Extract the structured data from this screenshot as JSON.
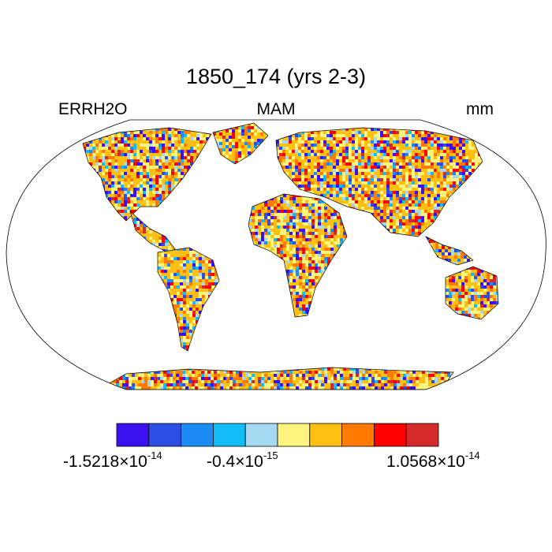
{
  "title": "1850_174 (yrs 2-3)",
  "left_label": "ERRH2O",
  "center_label": "MAM",
  "right_label": "mm",
  "colorbar": {
    "colors": [
      "#3a12f0",
      "#2d4ee4",
      "#1c8cf4",
      "#12bcf6",
      "#a6d8f2",
      "#fff480",
      "#ffc011",
      "#ff7a00",
      "#ff0000",
      "#d42a2a"
    ],
    "labels": [
      {
        "mantissa": "-1.5218",
        "exponent": "-14"
      },
      {
        "mantissa": "-0.4",
        "exponent": "-15"
      },
      {
        "mantissa": "1.0568",
        "exponent": "-14"
      }
    ]
  }
}
